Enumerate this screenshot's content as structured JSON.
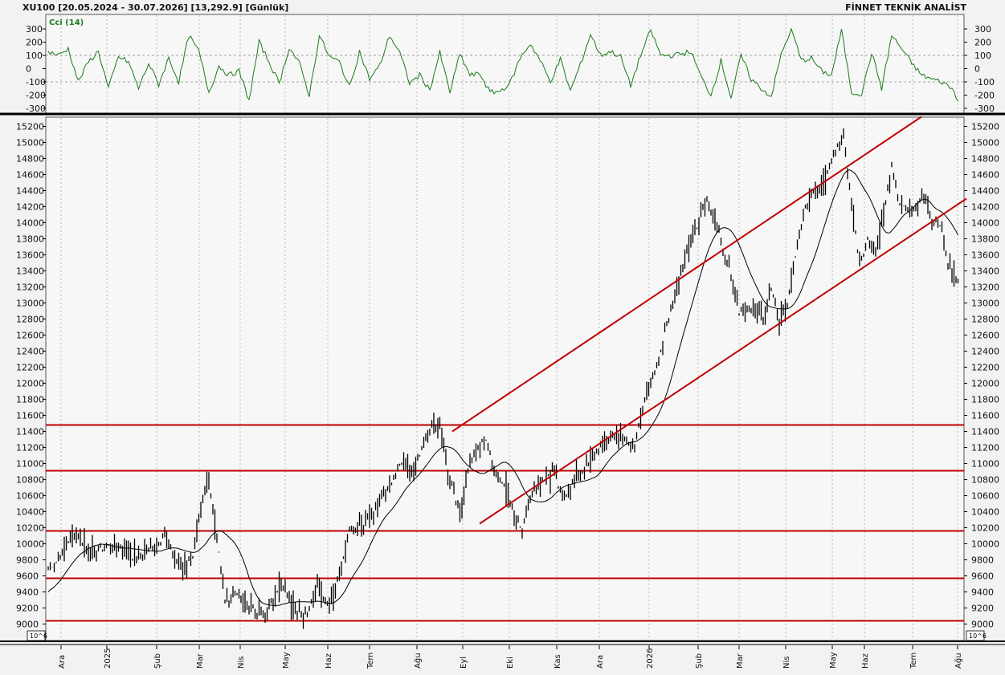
{
  "header": {
    "title": "XU100  [20.05.2024 - 30.07.2026]  [13,292.9]  [Günlük]",
    "brand": "FİNNET TEKNİK ANALİST"
  },
  "cci_panel": {
    "label": "Cci (14)",
    "ticks": [
      "300",
      "200",
      "100",
      "0",
      "-100",
      "-200",
      "-300"
    ]
  },
  "scale_badge": "10^6",
  "colors": {
    "price": "#000000",
    "cci": "#1a7a1a",
    "levels": "#c00000",
    "grid": "#999999",
    "background": "#f2f2f2"
  },
  "chart_data": {
    "type": "ohlc-bar",
    "y_ticks": [
      "15200",
      "15000",
      "14800",
      "14600",
      "14400",
      "14200",
      "14000",
      "13800",
      "13600",
      "13400",
      "13200",
      "13000",
      "12800",
      "12600",
      "12400",
      "12200",
      "12000",
      "11800",
      "11600",
      "11400",
      "11200",
      "11000",
      "10800",
      "10600",
      "10400",
      "10200",
      "10000",
      "9800",
      "9600",
      "9400",
      "9200",
      "9000"
    ],
    "ylim": [
      8800,
      15400
    ],
    "x_labels": [
      "Ara",
      "2025",
      "Şub",
      "Mar",
      "Nis",
      "May",
      "Haz",
      "Tem",
      "Ağu",
      "Eyl",
      "Eki",
      "Kas",
      "Ara",
      "2026",
      "Şub",
      "Mar",
      "Nis",
      "May",
      "Haz",
      "Tem",
      "Ağu"
    ],
    "last_close": 13292.9,
    "horizontal_levels": [
      11480,
      10910,
      10160,
      9570,
      9040
    ],
    "channel_upper": [
      [
        11400,
        11470
      ],
      [
        15300,
        15320
      ]
    ],
    "channel_lower": [
      [
        10250,
        10310
      ],
      [
        14250,
        14300
      ]
    ],
    "price_anchors": [
      [
        0,
        9700
      ],
      [
        5,
        9800
      ],
      [
        10,
        10050
      ],
      [
        14,
        10150
      ],
      [
        20,
        9900
      ],
      [
        28,
        9950
      ],
      [
        35,
        10000
      ],
      [
        42,
        9850
      ],
      [
        50,
        9900
      ],
      [
        58,
        10100
      ],
      [
        66,
        9700
      ],
      [
        72,
        9850
      ],
      [
        76,
        10400
      ],
      [
        80,
        10800
      ],
      [
        84,
        10100
      ],
      [
        88,
        9300
      ],
      [
        94,
        9400
      ],
      [
        100,
        9200
      ],
      [
        108,
        9100
      ],
      [
        115,
        9500
      ],
      [
        122,
        9250
      ],
      [
        128,
        9100
      ],
      [
        134,
        9500
      ],
      [
        140,
        9200
      ],
      [
        146,
        9700
      ],
      [
        150,
        10200
      ],
      [
        158,
        10250
      ],
      [
        164,
        10500
      ],
      [
        170,
        10700
      ],
      [
        176,
        11000
      ],
      [
        182,
        10900
      ],
      [
        188,
        11300
      ],
      [
        192,
        11500
      ],
      [
        196,
        11350
      ],
      [
        200,
        10800
      ],
      [
        205,
        10400
      ],
      [
        210,
        11000
      ],
      [
        214,
        11200
      ],
      [
        218,
        11300
      ],
      [
        222,
        10900
      ],
      [
        228,
        10700
      ],
      [
        232,
        10400
      ],
      [
        236,
        10200
      ],
      [
        240,
        10600
      ],
      [
        246,
        10800
      ],
      [
        252,
        10900
      ],
      [
        256,
        10550
      ],
      [
        262,
        10800
      ],
      [
        268,
        10950
      ],
      [
        274,
        11200
      ],
      [
        280,
        11350
      ],
      [
        286,
        11300
      ],
      [
        292,
        11200
      ],
      [
        298,
        11900
      ],
      [
        304,
        12300
      ],
      [
        310,
        12900
      ],
      [
        316,
        13500
      ],
      [
        322,
        13900
      ],
      [
        328,
        14300
      ],
      [
        332,
        14000
      ],
      [
        336,
        13700
      ],
      [
        340,
        13300
      ],
      [
        344,
        12900
      ],
      [
        350,
        12950
      ],
      [
        356,
        12800
      ],
      [
        360,
        13200
      ],
      [
        364,
        12800
      ],
      [
        368,
        13000
      ],
      [
        372,
        13600
      ],
      [
        376,
        14100
      ],
      [
        380,
        14350
      ],
      [
        386,
        14450
      ],
      [
        392,
        14900
      ],
      [
        396,
        15100
      ],
      [
        400,
        14200
      ],
      [
        404,
        13500
      ],
      [
        408,
        13800
      ],
      [
        412,
        13650
      ],
      [
        416,
        14100
      ],
      [
        420,
        14650
      ],
      [
        424,
        14250
      ],
      [
        428,
        14100
      ],
      [
        432,
        14200
      ],
      [
        436,
        14300
      ],
      [
        440,
        14050
      ],
      [
        444,
        14000
      ],
      [
        448,
        13500
      ],
      [
        452,
        13300
      ]
    ],
    "cci_anchors": [
      [
        0,
        130
      ],
      [
        5,
        100
      ],
      [
        10,
        150
      ],
      [
        15,
        -100
      ],
      [
        20,
        50
      ],
      [
        25,
        130
      ],
      [
        30,
        -150
      ],
      [
        35,
        90
      ],
      [
        40,
        50
      ],
      [
        45,
        -150
      ],
      [
        50,
        40
      ],
      [
        55,
        -120
      ],
      [
        60,
        80
      ],
      [
        65,
        -100
      ],
      [
        70,
        250
      ],
      [
        75,
        130
      ],
      [
        80,
        -180
      ],
      [
        85,
        20
      ],
      [
        90,
        -50
      ],
      [
        95,
        -20
      ],
      [
        100,
        -240
      ],
      [
        105,
        200
      ],
      [
        110,
        50
      ],
      [
        115,
        -110
      ],
      [
        120,
        160
      ],
      [
        125,
        40
      ],
      [
        130,
        -200
      ],
      [
        135,
        250
      ],
      [
        140,
        90
      ],
      [
        145,
        50
      ],
      [
        150,
        -140
      ],
      [
        155,
        130
      ],
      [
        160,
        -80
      ],
      [
        165,
        20
      ],
      [
        170,
        250
      ],
      [
        175,
        120
      ],
      [
        180,
        -110
      ],
      [
        185,
        -50
      ],
      [
        190,
        -160
      ],
      [
        195,
        120
      ],
      [
        200,
        -180
      ],
      [
        205,
        110
      ],
      [
        210,
        -50
      ],
      [
        215,
        -40
      ],
      [
        220,
        -180
      ],
      [
        225,
        -170
      ],
      [
        230,
        -110
      ],
      [
        235,
        80
      ],
      [
        240,
        190
      ],
      [
        245,
        60
      ],
      [
        250,
        -100
      ],
      [
        255,
        70
      ],
      [
        260,
        -170
      ],
      [
        265,
        30
      ],
      [
        270,
        260
      ],
      [
        275,
        100
      ],
      [
        280,
        130
      ],
      [
        285,
        90
      ],
      [
        290,
        -130
      ],
      [
        295,
        100
      ],
      [
        300,
        290
      ],
      [
        305,
        100
      ],
      [
        310,
        100
      ],
      [
        315,
        110
      ],
      [
        320,
        130
      ],
      [
        325,
        -60
      ],
      [
        330,
        -200
      ],
      [
        335,
        60
      ],
      [
        340,
        -220
      ],
      [
        345,
        100
      ],
      [
        350,
        -80
      ],
      [
        355,
        -150
      ],
      [
        360,
        -210
      ],
      [
        365,
        110
      ],
      [
        370,
        300
      ],
      [
        375,
        60
      ],
      [
        380,
        80
      ],
      [
        385,
        -20
      ],
      [
        390,
        -50
      ],
      [
        395,
        290
      ],
      [
        400,
        -180
      ],
      [
        405,
        -190
      ],
      [
        410,
        120
      ],
      [
        415,
        -150
      ],
      [
        420,
        250
      ],
      [
        425,
        150
      ],
      [
        430,
        40
      ],
      [
        435,
        -50
      ],
      [
        440,
        -80
      ],
      [
        445,
        -100
      ],
      [
        450,
        -150
      ],
      [
        453,
        -230
      ]
    ]
  }
}
